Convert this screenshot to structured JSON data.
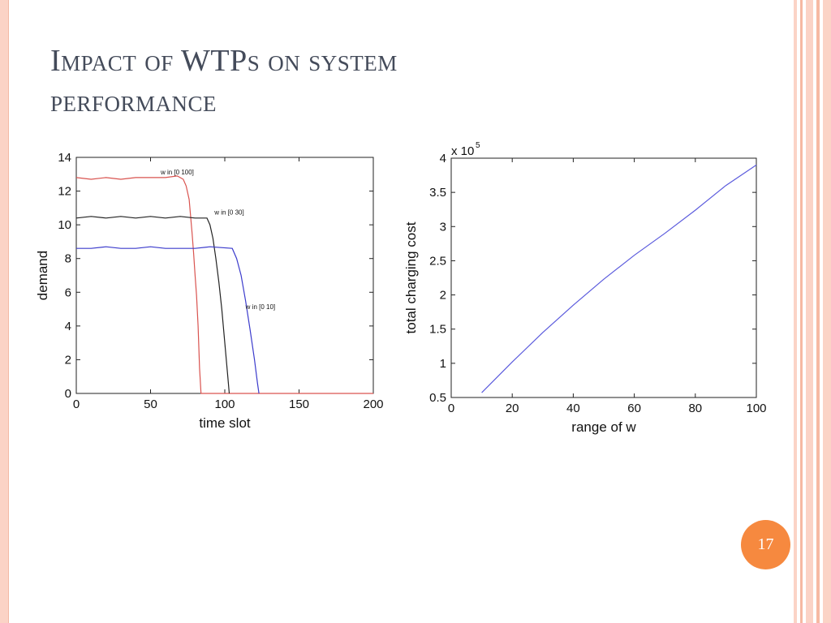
{
  "slide": {
    "title_line1": "Impact of WTPs on system",
    "title_line2": "performance",
    "page_number": "17",
    "colors": {
      "accent": "#f6893f",
      "stripe": "#fbd3c6",
      "title": "#444b5a"
    }
  },
  "chart_data": [
    {
      "type": "line",
      "title": "",
      "xlabel": "time slot",
      "ylabel": "demand",
      "xlim": [
        0,
        200
      ],
      "ylim": [
        0,
        14
      ],
      "xticks": [
        "0",
        "50",
        "100",
        "150",
        "200"
      ],
      "yticks": [
        "0",
        "2",
        "4",
        "6",
        "8",
        "10",
        "12",
        "14"
      ],
      "grid": false,
      "series": [
        {
          "name": "w in [0 100]",
          "color": "#d9534f",
          "x": [
            0,
            10,
            20,
            30,
            40,
            50,
            60,
            68,
            72,
            74,
            76,
            77,
            78,
            79,
            80,
            81,
            82,
            83,
            84,
            200
          ],
          "y": [
            12.8,
            12.7,
            12.8,
            12.7,
            12.8,
            12.8,
            12.8,
            12.9,
            12.7,
            12.3,
            11.5,
            10.5,
            9.5,
            8.3,
            7.0,
            5.8,
            4.0,
            1.5,
            0,
            0
          ]
        },
        {
          "name": "w in [0 30]",
          "color": "#222222",
          "x": [
            0,
            10,
            20,
            30,
            40,
            50,
            60,
            70,
            80,
            88,
            90,
            92,
            94,
            96,
            98,
            100,
            102,
            103
          ],
          "y": [
            10.4,
            10.5,
            10.4,
            10.5,
            10.4,
            10.5,
            10.4,
            10.5,
            10.4,
            10.4,
            10.0,
            9.2,
            8.0,
            6.6,
            5.0,
            3.0,
            1.0,
            0
          ]
        },
        {
          "name": "w in [0 10]",
          "color": "#3b3bcc",
          "x": [
            0,
            10,
            20,
            30,
            40,
            50,
            60,
            70,
            80,
            90,
            105,
            108,
            111,
            114,
            117,
            120,
            122,
            123
          ],
          "y": [
            8.6,
            8.6,
            8.7,
            8.6,
            8.6,
            8.7,
            8.6,
            8.6,
            8.6,
            8.7,
            8.6,
            8.0,
            7.0,
            5.5,
            3.8,
            2.0,
            0.6,
            0
          ]
        }
      ]
    },
    {
      "type": "line",
      "title": "",
      "xlabel": "range of w",
      "ylabel": "total charging cost",
      "scale_label": "x 10",
      "scale_exponent": "5",
      "xlim": [
        0,
        100
      ],
      "ylim": [
        0.5,
        4
      ],
      "xticks": [
        "0",
        "20",
        "40",
        "60",
        "80",
        "100"
      ],
      "yticks": [
        "0.5",
        "1",
        "1.5",
        "2",
        "2.5",
        "3",
        "3.5",
        "4"
      ],
      "grid": false,
      "series": [
        {
          "color": "#5b5bdd",
          "x": [
            10,
            20,
            30,
            40,
            50,
            60,
            70,
            80,
            90,
            100
          ],
          "y": [
            0.57,
            1.02,
            1.45,
            1.85,
            2.23,
            2.58,
            2.9,
            3.24,
            3.6,
            3.9
          ]
        }
      ]
    }
  ]
}
